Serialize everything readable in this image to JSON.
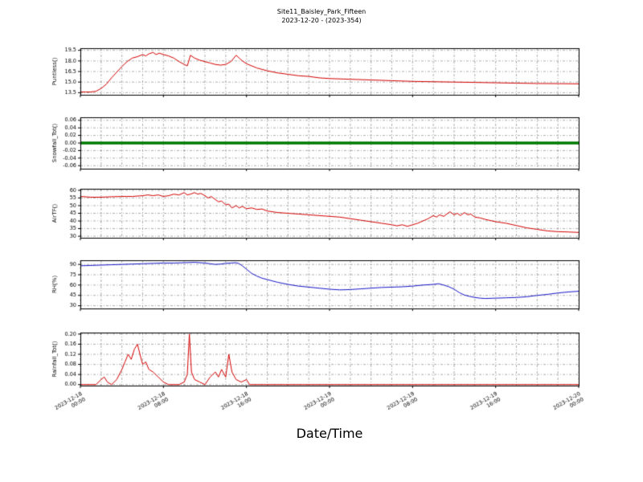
{
  "title": {
    "line1": "Site11_Baisley_Park_Fifteen",
    "line2": "2023-12-20 - (2023-354)"
  },
  "xlabel": "Date/Time",
  "chart_data": {
    "type": "line",
    "x_unit": "hours since 2023-12-18 00:00",
    "x_range": [
      0,
      48
    ],
    "x_minor_step": 2,
    "x_major_ticks": [
      0,
      8,
      16,
      24,
      32,
      40,
      48
    ],
    "x_tick_labels": [
      [
        "2023-12-18",
        "00:00"
      ],
      [
        "2023-12-18",
        "08:00"
      ],
      [
        "2023-12-18",
        "16:00"
      ],
      [
        "2023-12-19",
        "00:00"
      ],
      [
        "2023-12-19",
        "08:00"
      ],
      [
        "2023-12-19",
        "16:00"
      ],
      [
        "2023-12-20",
        "00:00"
      ]
    ],
    "grid": "dash-dot both axes",
    "panels": [
      {
        "ylabel": "Puntless()",
        "color": "#d40000",
        "linewidth": 1,
        "ylim": [
          13.2,
          19.8
        ],
        "yticks": [
          13.5,
          15.0,
          16.5,
          18.0,
          19.5
        ],
        "decimals": 1,
        "points": [
          [
            0,
            13.6
          ],
          [
            0.5,
            13.6
          ],
          [
            1,
            13.6
          ],
          [
            1.5,
            13.7
          ],
          [
            2,
            14.1
          ],
          [
            2.5,
            14.7
          ],
          [
            3,
            15.6
          ],
          [
            3.5,
            16.4
          ],
          [
            4,
            17.2
          ],
          [
            4.5,
            17.9
          ],
          [
            5,
            18.4
          ],
          [
            5.5,
            18.6
          ],
          [
            6,
            18.9
          ],
          [
            6.3,
            18.7
          ],
          [
            6.6,
            19.0
          ],
          [
            7,
            19.2
          ],
          [
            7.3,
            18.9
          ],
          [
            7.6,
            19.1
          ],
          [
            8,
            18.9
          ],
          [
            8.5,
            18.7
          ],
          [
            9,
            18.4
          ],
          [
            9.5,
            17.9
          ],
          [
            10,
            17.5
          ],
          [
            10.3,
            17.3
          ],
          [
            10.6,
            18.8
          ],
          [
            11,
            18.4
          ],
          [
            11.5,
            18.1
          ],
          [
            12,
            17.9
          ],
          [
            12.5,
            17.7
          ],
          [
            13,
            17.5
          ],
          [
            13.5,
            17.4
          ],
          [
            14,
            17.5
          ],
          [
            14.5,
            17.9
          ],
          [
            15,
            18.8
          ],
          [
            15.3,
            18.4
          ],
          [
            15.6,
            18.0
          ],
          [
            16,
            17.6
          ],
          [
            16.5,
            17.3
          ],
          [
            17,
            17.0
          ],
          [
            18,
            16.6
          ],
          [
            19,
            16.3
          ],
          [
            20,
            16.1
          ],
          [
            21,
            15.9
          ],
          [
            22,
            15.8
          ],
          [
            23,
            15.6
          ],
          [
            24,
            15.5
          ],
          [
            26,
            15.4
          ],
          [
            28,
            15.3
          ],
          [
            30,
            15.2
          ],
          [
            32,
            15.1
          ],
          [
            34,
            15.05
          ],
          [
            36,
            15.0
          ],
          [
            38,
            14.95
          ],
          [
            40,
            14.9
          ],
          [
            42,
            14.85
          ],
          [
            44,
            14.8
          ],
          [
            46,
            14.78
          ],
          [
            48,
            14.75
          ]
        ]
      },
      {
        "ylabel": "Snowfall_Tot()",
        "color": "#007a00",
        "linewidth": 3.5,
        "ylim": [
          -0.068,
          0.068
        ],
        "yticks": [
          -0.06,
          -0.04,
          -0.02,
          0.0,
          0.02,
          0.04,
          0.06
        ],
        "decimals": 2,
        "points": [
          [
            0,
            0
          ],
          [
            48,
            0
          ]
        ]
      },
      {
        "ylabel": "AirTF()",
        "color": "#d40000",
        "linewidth": 1,
        "ylim": [
          29,
          61
        ],
        "yticks": [
          30,
          35,
          40,
          45,
          50,
          55,
          60
        ],
        "decimals": 0,
        "points": [
          [
            0,
            56
          ],
          [
            1,
            55.5
          ],
          [
            2,
            55.5
          ],
          [
            3,
            55.8
          ],
          [
            4,
            56
          ],
          [
            5,
            56
          ],
          [
            6,
            56.5
          ],
          [
            6.5,
            57
          ],
          [
            7,
            56.5
          ],
          [
            7.5,
            57
          ],
          [
            8,
            56
          ],
          [
            8.5,
            56.5
          ],
          [
            9,
            57.5
          ],
          [
            9.5,
            57
          ],
          [
            10,
            58.5
          ],
          [
            10.3,
            57
          ],
          [
            10.6,
            57.5
          ],
          [
            11,
            58.5
          ],
          [
            11.3,
            57.5
          ],
          [
            11.6,
            58
          ],
          [
            12,
            56.5
          ],
          [
            12.3,
            55
          ],
          [
            12.6,
            56
          ],
          [
            13,
            54
          ],
          [
            13.3,
            52.5
          ],
          [
            13.6,
            53
          ],
          [
            14,
            50.5
          ],
          [
            14.3,
            51
          ],
          [
            14.6,
            48.5
          ],
          [
            15,
            50
          ],
          [
            15.3,
            48.5
          ],
          [
            15.6,
            49.5
          ],
          [
            16,
            48
          ],
          [
            16.5,
            48.5
          ],
          [
            17,
            47.5
          ],
          [
            17.5,
            47.8
          ],
          [
            18,
            46.5
          ],
          [
            18.5,
            46
          ],
          [
            19,
            45.5
          ],
          [
            20,
            45
          ],
          [
            21,
            44.5
          ],
          [
            22,
            44
          ],
          [
            23,
            43.5
          ],
          [
            24,
            43
          ],
          [
            25,
            42.5
          ],
          [
            26,
            41.5
          ],
          [
            27,
            40.5
          ],
          [
            28,
            39.5
          ],
          [
            29,
            38.5
          ],
          [
            30,
            37.5
          ],
          [
            30.5,
            36.8
          ],
          [
            31,
            37.5
          ],
          [
            31.5,
            36.5
          ],
          [
            32,
            37.5
          ],
          [
            32.5,
            38.5
          ],
          [
            33,
            40
          ],
          [
            33.5,
            41.5
          ],
          [
            34,
            43.5
          ],
          [
            34.3,
            42.5
          ],
          [
            34.6,
            44
          ],
          [
            35,
            43
          ],
          [
            35.3,
            44.5
          ],
          [
            35.6,
            46
          ],
          [
            36,
            44
          ],
          [
            36.3,
            45
          ],
          [
            36.6,
            43.5
          ],
          [
            37,
            45.5
          ],
          [
            37.3,
            44
          ],
          [
            37.6,
            44.5
          ],
          [
            38,
            42.5
          ],
          [
            38.5,
            42
          ],
          [
            39,
            41
          ],
          [
            40,
            39.5
          ],
          [
            41,
            38.5
          ],
          [
            42,
            37
          ],
          [
            43,
            35.5
          ],
          [
            44,
            34.5
          ],
          [
            45,
            33.5
          ],
          [
            46,
            33
          ],
          [
            47,
            32.8
          ],
          [
            48,
            32.5
          ]
        ]
      },
      {
        "ylabel": "RH(%)",
        "color": "#1515c8",
        "linewidth": 1,
        "ylim": [
          26,
          96
        ],
        "yticks": [
          30,
          45,
          60,
          75,
          90
        ],
        "decimals": 0,
        "points": [
          [
            0,
            88
          ],
          [
            1,
            88.5
          ],
          [
            2,
            89
          ],
          [
            3,
            89.5
          ],
          [
            4,
            90
          ],
          [
            5,
            90.5
          ],
          [
            6,
            91
          ],
          [
            7,
            91.5
          ],
          [
            8,
            92
          ],
          [
            9,
            92
          ],
          [
            10,
            92.5
          ],
          [
            11,
            93
          ],
          [
            12,
            92
          ],
          [
            12.5,
            91
          ],
          [
            13,
            90
          ],
          [
            13.5,
            90.5
          ],
          [
            14,
            91.5
          ],
          [
            14.5,
            92
          ],
          [
            15,
            92.5
          ],
          [
            15.3,
            91
          ],
          [
            15.6,
            88
          ],
          [
            16,
            83
          ],
          [
            16.5,
            77
          ],
          [
            17,
            73
          ],
          [
            17.5,
            70
          ],
          [
            18,
            68
          ],
          [
            18.5,
            66
          ],
          [
            19,
            64
          ],
          [
            19.5,
            62.5
          ],
          [
            20,
            61
          ],
          [
            21,
            58.5
          ],
          [
            22,
            57
          ],
          [
            23,
            55.5
          ],
          [
            24,
            54
          ],
          [
            25,
            53
          ],
          [
            26,
            53.5
          ],
          [
            27,
            54.5
          ],
          [
            28,
            55.5
          ],
          [
            29,
            56.5
          ],
          [
            30,
            57
          ],
          [
            31,
            57.5
          ],
          [
            32,
            58.5
          ],
          [
            33,
            60
          ],
          [
            34,
            61
          ],
          [
            34.5,
            62
          ],
          [
            35,
            60
          ],
          [
            35.5,
            57.5
          ],
          [
            36,
            54
          ],
          [
            36.5,
            49
          ],
          [
            37,
            45.5
          ],
          [
            37.5,
            43.5
          ],
          [
            38,
            42
          ],
          [
            38.5,
            41
          ],
          [
            39,
            40.5
          ],
          [
            40,
            41
          ],
          [
            41,
            41.5
          ],
          [
            42,
            42
          ],
          [
            43,
            43
          ],
          [
            44,
            45
          ],
          [
            45,
            46.5
          ],
          [
            46,
            48.5
          ],
          [
            47,
            50
          ],
          [
            48,
            51
          ]
        ]
      },
      {
        "ylabel": "Rainfall_Tot()",
        "color": "#d40000",
        "linewidth": 1,
        "ylim": [
          -0.004,
          0.206
        ],
        "yticks": [
          0.0,
          0.04,
          0.08,
          0.12,
          0.16,
          0.2
        ],
        "decimals": 2,
        "points": [
          [
            0,
            0
          ],
          [
            1.5,
            0
          ],
          [
            2,
            0.02
          ],
          [
            2.3,
            0.03
          ],
          [
            2.6,
            0.01
          ],
          [
            3,
            0
          ],
          [
            3.5,
            0.02
          ],
          [
            4,
            0.06
          ],
          [
            4.3,
            0.09
          ],
          [
            4.6,
            0.12
          ],
          [
            4.9,
            0.1
          ],
          [
            5.2,
            0.14
          ],
          [
            5.5,
            0.16
          ],
          [
            5.8,
            0.11
          ],
          [
            6,
            0.08
          ],
          [
            6.3,
            0.09
          ],
          [
            6.6,
            0.06
          ],
          [
            7,
            0.05
          ],
          [
            7.5,
            0.03
          ],
          [
            8,
            0.01
          ],
          [
            8.5,
            0
          ],
          [
            9.5,
            0
          ],
          [
            10,
            0.01
          ],
          [
            10.3,
            0.04
          ],
          [
            10.5,
            0.2
          ],
          [
            10.7,
            0.05
          ],
          [
            11,
            0.02
          ],
          [
            11.5,
            0.01
          ],
          [
            12,
            0
          ],
          [
            12.5,
            0.03
          ],
          [
            13,
            0.05
          ],
          [
            13.3,
            0.03
          ],
          [
            13.6,
            0.06
          ],
          [
            14,
            0.03
          ],
          [
            14.3,
            0.12
          ],
          [
            14.6,
            0.05
          ],
          [
            15,
            0.02
          ],
          [
            15.5,
            0.01
          ],
          [
            16,
            0.02
          ],
          [
            16.3,
            0
          ],
          [
            18,
            0
          ],
          [
            24,
            0
          ],
          [
            32,
            0
          ],
          [
            40,
            0
          ],
          [
            48,
            0
          ]
        ]
      }
    ]
  }
}
